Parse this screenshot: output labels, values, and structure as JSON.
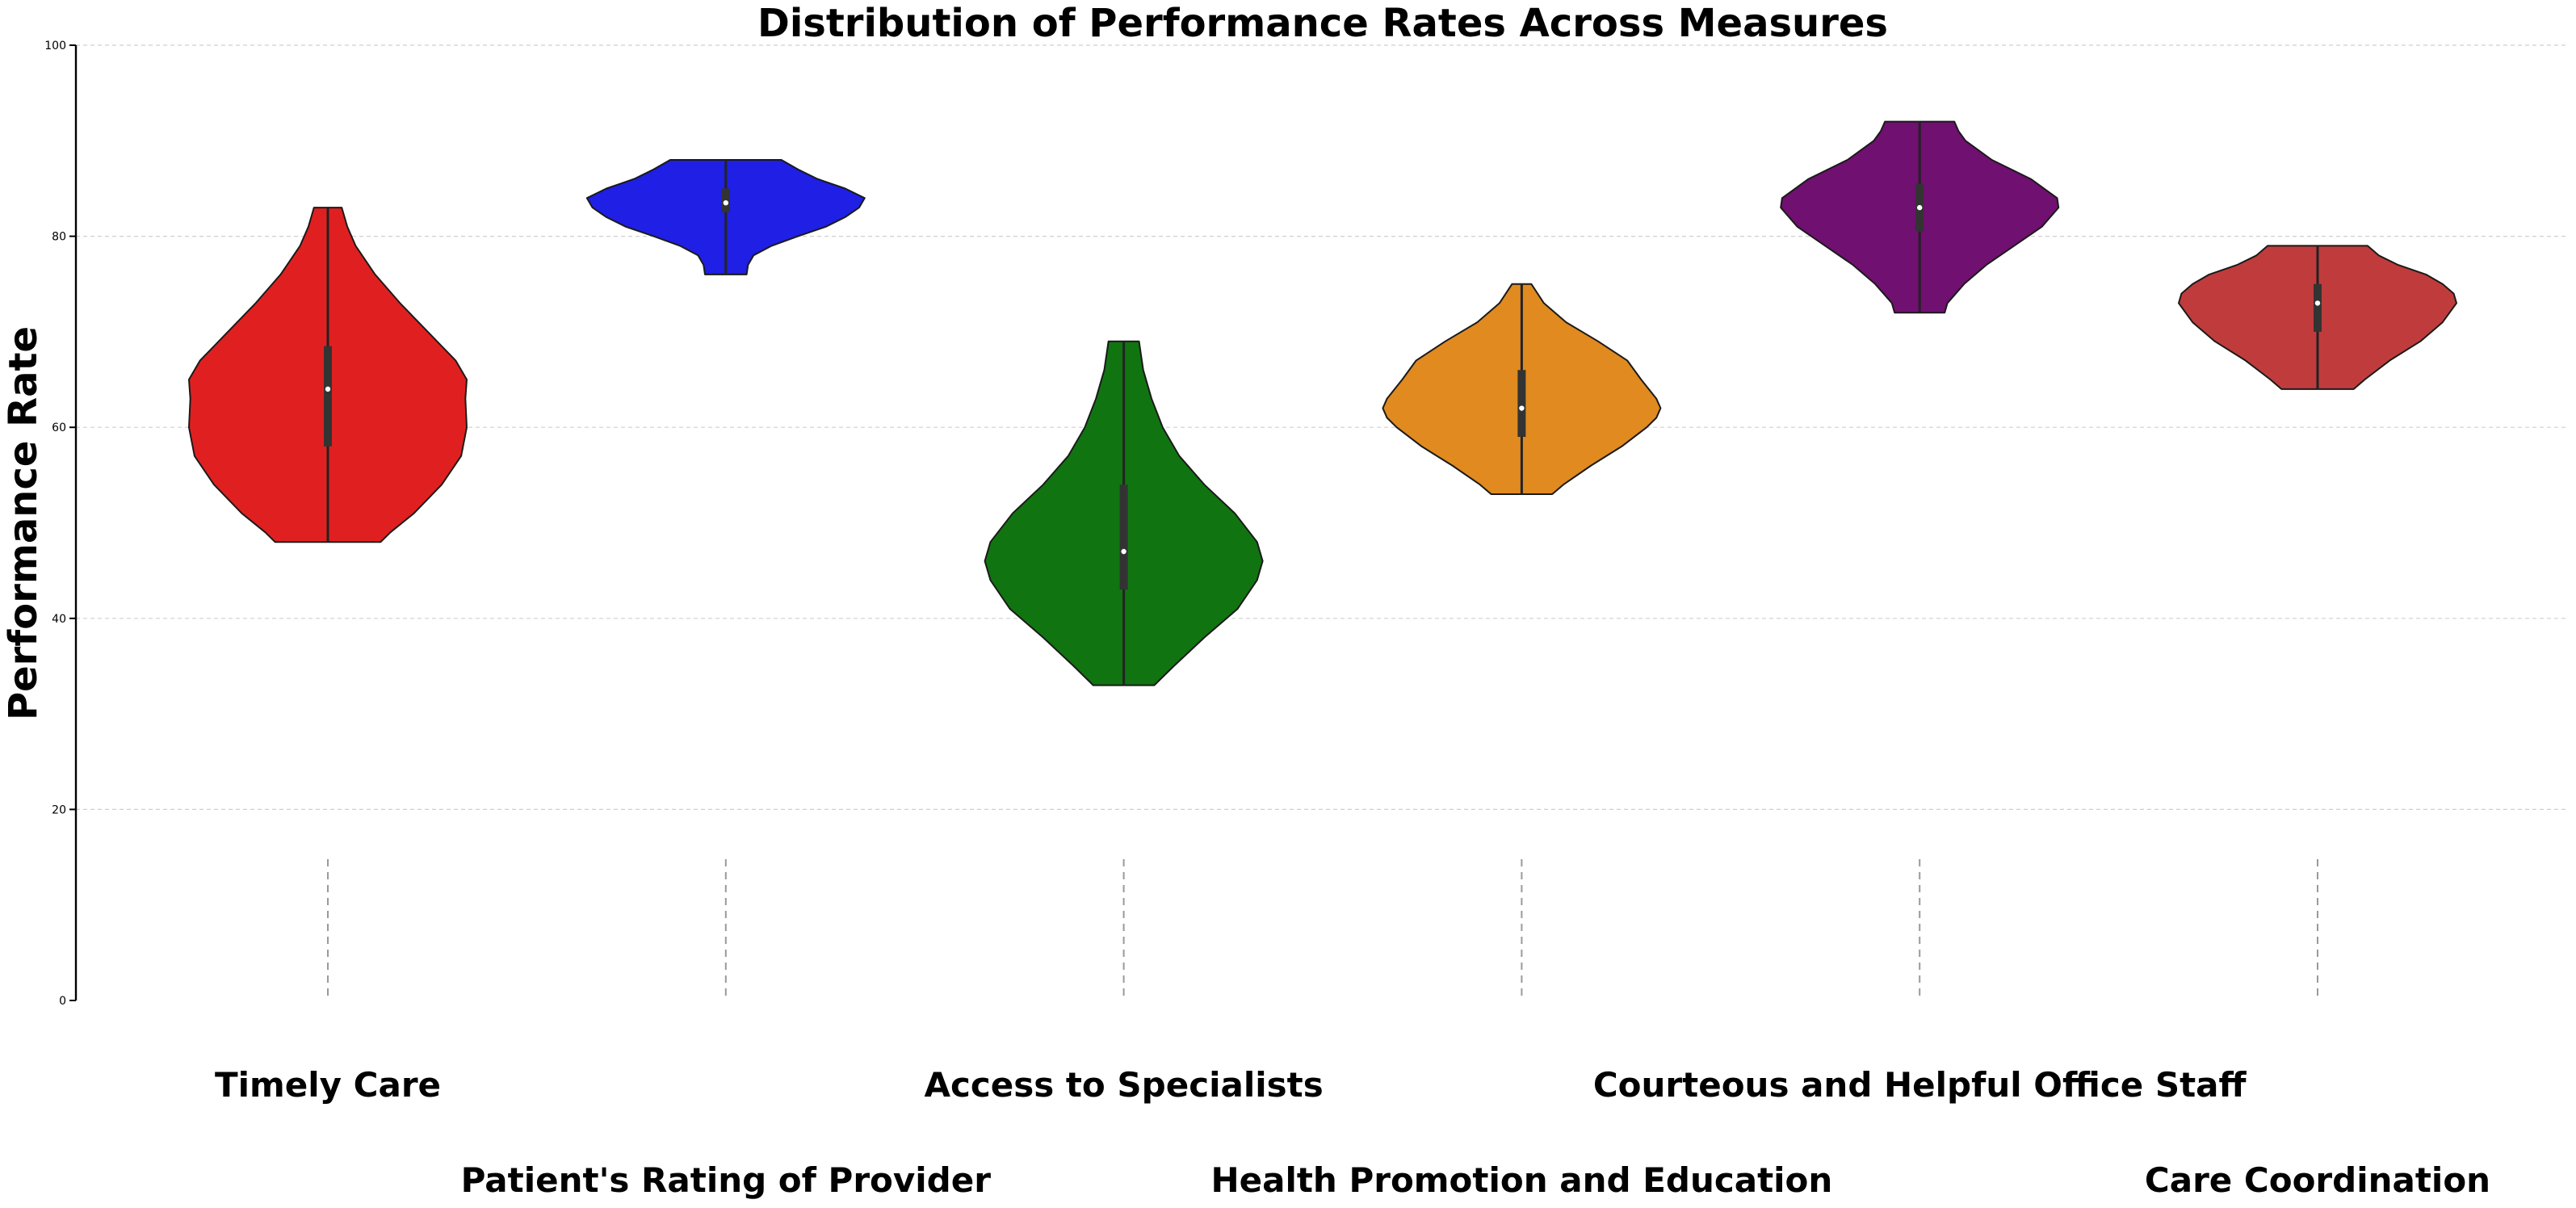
{
  "chart_data": {
    "type": "violin",
    "title": "Distribution of Performance Rates Across Measures",
    "xlabel": "",
    "ylabel": "Performance Rate",
    "ylim": [
      0,
      100
    ],
    "yticks": [
      0,
      20,
      40,
      60,
      80,
      100
    ],
    "grid": true,
    "categories": [
      "Timely Care",
      "Patient's Rating of Provider",
      "Access to Specialists",
      "Health Promotion and Education",
      "Courteous and Helpful Office Staff",
      "Care Coordination"
    ],
    "series": [
      {
        "category": "Timely Care",
        "color": "#e02020",
        "min": 48,
        "q1": 58,
        "median": 64,
        "q3": 68.5,
        "max": 83,
        "density": [
          [
            48,
            0.38
          ],
          [
            49,
            0.45
          ],
          [
            51,
            0.62
          ],
          [
            54,
            0.82
          ],
          [
            57,
            0.96
          ],
          [
            60,
            1.0
          ],
          [
            63,
            0.99
          ],
          [
            65,
            1.0
          ],
          [
            67,
            0.92
          ],
          [
            70,
            0.72
          ],
          [
            73,
            0.52
          ],
          [
            76,
            0.34
          ],
          [
            79,
            0.2
          ],
          [
            81,
            0.14
          ],
          [
            83,
            0.1
          ]
        ]
      },
      {
        "category": "Patient's Rating of Provider",
        "color": "#1f1fe5",
        "min": 76,
        "q1": 82.5,
        "median": 83.5,
        "q3": 85,
        "max": 88,
        "density": [
          [
            76,
            0.15
          ],
          [
            77,
            0.16
          ],
          [
            78,
            0.2
          ],
          [
            79,
            0.33
          ],
          [
            80,
            0.52
          ],
          [
            81,
            0.72
          ],
          [
            82,
            0.86
          ],
          [
            83,
            0.96
          ],
          [
            84,
            1.0
          ],
          [
            85,
            0.86
          ],
          [
            86,
            0.66
          ],
          [
            87,
            0.52
          ],
          [
            88,
            0.4
          ]
        ]
      },
      {
        "category": "Access to Specialists",
        "color": "#107510",
        "min": 33,
        "q1": 43,
        "median": 47,
        "q3": 54,
        "max": 69,
        "density": [
          [
            33,
            0.22
          ],
          [
            35,
            0.36
          ],
          [
            38,
            0.58
          ],
          [
            41,
            0.82
          ],
          [
            44,
            0.96
          ],
          [
            46,
            1.0
          ],
          [
            48,
            0.96
          ],
          [
            51,
            0.8
          ],
          [
            54,
            0.58
          ],
          [
            57,
            0.4
          ],
          [
            60,
            0.28
          ],
          [
            63,
            0.2
          ],
          [
            66,
            0.14
          ],
          [
            69,
            0.11
          ]
        ]
      },
      {
        "category": "Health Promotion and Education",
        "color": "#e08a20",
        "min": 53,
        "q1": 59,
        "median": 62,
        "q3": 66,
        "max": 75,
        "density": [
          [
            53,
            0.22
          ],
          [
            54,
            0.3
          ],
          [
            56,
            0.5
          ],
          [
            58,
            0.72
          ],
          [
            60,
            0.9
          ],
          [
            61,
            0.97
          ],
          [
            62,
            1.0
          ],
          [
            63,
            0.97
          ],
          [
            65,
            0.86
          ],
          [
            67,
            0.76
          ],
          [
            69,
            0.55
          ],
          [
            71,
            0.32
          ],
          [
            73,
            0.16
          ],
          [
            75,
            0.07
          ]
        ]
      },
      {
        "category": "Courteous and Helpful Office Staff",
        "color": "#701070",
        "min": 72,
        "q1": 80.5,
        "median": 83,
        "q3": 85.5,
        "max": 92,
        "density": [
          [
            72,
            0.18
          ],
          [
            73,
            0.2
          ],
          [
            75,
            0.32
          ],
          [
            77,
            0.48
          ],
          [
            79,
            0.68
          ],
          [
            81,
            0.88
          ],
          [
            83,
            1.0
          ],
          [
            84,
            0.99
          ],
          [
            86,
            0.8
          ],
          [
            88,
            0.52
          ],
          [
            90,
            0.33
          ],
          [
            91,
            0.28
          ],
          [
            92,
            0.25
          ]
        ]
      },
      {
        "category": "Care Coordination",
        "color": "#c03c3c",
        "min": 64,
        "q1": 70,
        "median": 73,
        "q3": 75,
        "max": 79,
        "density": [
          [
            64,
            0.26
          ],
          [
            65,
            0.34
          ],
          [
            67,
            0.52
          ],
          [
            69,
            0.74
          ],
          [
            71,
            0.9
          ],
          [
            73,
            1.0
          ],
          [
            74,
            0.98
          ],
          [
            75,
            0.9
          ],
          [
            76,
            0.78
          ],
          [
            77,
            0.58
          ],
          [
            78,
            0.44
          ],
          [
            79,
            0.36
          ]
        ]
      }
    ]
  }
}
